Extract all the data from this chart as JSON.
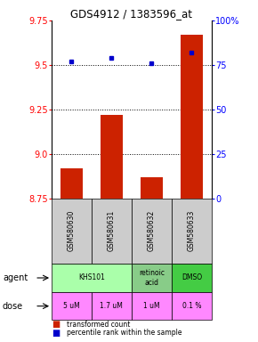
{
  "title": "GDS4912 / 1383596_at",
  "samples": [
    "GSM580630",
    "GSM580631",
    "GSM580632",
    "GSM580633"
  ],
  "bar_values": [
    8.92,
    9.22,
    8.87,
    9.67
  ],
  "percentile_values": [
    77,
    79,
    76,
    82
  ],
  "ylim_left": [
    8.75,
    9.75
  ],
  "ylim_right": [
    0,
    100
  ],
  "yticks_left": [
    8.75,
    9.0,
    9.25,
    9.5,
    9.75
  ],
  "yticks_right": [
    0,
    25,
    50,
    75,
    100
  ],
  "ytick_labels_right": [
    "0",
    "25",
    "50",
    "75",
    "100%"
  ],
  "bar_color": "#cc2200",
  "dot_color": "#0000cc",
  "bar_bottom": 8.75,
  "agent_spans": [
    [
      0,
      1,
      "KHS101",
      "#aaffaa"
    ],
    [
      2,
      2,
      "retinoic\nacid",
      "#88cc88"
    ],
    [
      3,
      3,
      "DMSO",
      "#44cc44"
    ]
  ],
  "dose_labels": [
    "5 uM",
    "1.7 uM",
    "1 uM",
    "0.1 %"
  ],
  "dose_color": "#ff88ff",
  "sample_bg_color": "#cccccc",
  "hgrid_values": [
    9.0,
    9.25,
    9.5
  ],
  "legend_bar_label": "transformed count",
  "legend_dot_label": "percentile rank within the sample"
}
